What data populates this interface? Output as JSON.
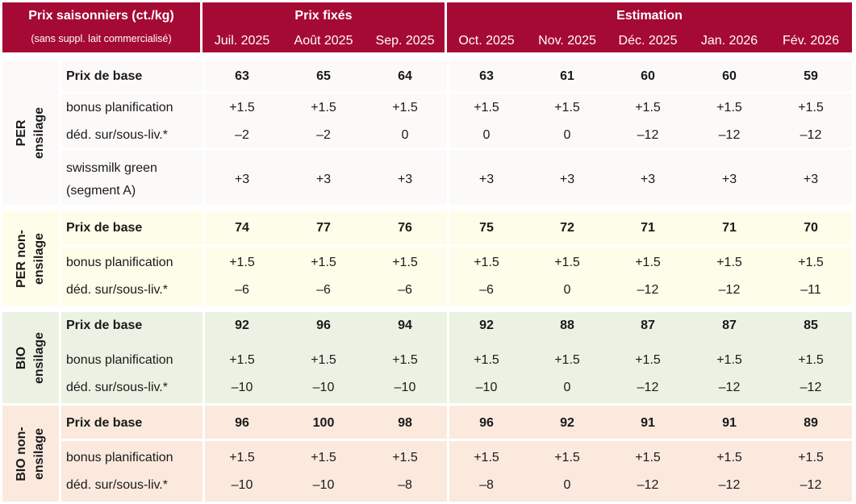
{
  "header": {
    "title": "Prix saisonniers (ct./kg)",
    "subtitle": "(sans suppl. lait commercialisé)",
    "fixed_label": "Prix fixés",
    "estimate_label": "Estimation",
    "months": [
      "Juil. 2025",
      "Août 2025",
      "Sep. 2025",
      "Oct. 2025",
      "Nov. 2025",
      "Déc. 2025",
      "Jan. 2026",
      "Fév. 2026"
    ]
  },
  "groups": [
    {
      "label_line1": "PER",
      "label_line2": "ensilage",
      "color": "#fcfaf9",
      "rows": [
        {
          "label": "Prix de base",
          "values": [
            "63",
            "65",
            "64",
            "63",
            "61",
            "60",
            "60",
            "59"
          ]
        },
        {
          "label": "bonus planification",
          "values": [
            "+1.5",
            "+1.5",
            "+1.5",
            "+1.5",
            "+1.5",
            "+1.5",
            "+1.5",
            "+1.5"
          ]
        },
        {
          "label": "déd. sur/sous-liv.*",
          "values": [
            "–2",
            "–2",
            "0",
            "0",
            "0",
            "–12",
            "–12",
            "–12"
          ]
        },
        {
          "label": "swissmilk green",
          "label2": "(segment A)",
          "values": [
            "+3",
            "+3",
            "+3",
            "+3",
            "+3",
            "+3",
            "+3",
            "+3"
          ]
        }
      ]
    },
    {
      "label_line1": "PER non-",
      "label_line2": "ensilage",
      "color": "#fefde9",
      "rows": [
        {
          "label": "Prix de base",
          "values": [
            "74",
            "77",
            "76",
            "75",
            "72",
            "71",
            "71",
            "70"
          ]
        },
        {
          "label": "bonus planification",
          "values": [
            "+1.5",
            "+1.5",
            "+1.5",
            "+1.5",
            "+1.5",
            "+1.5",
            "+1.5",
            "+1.5"
          ]
        },
        {
          "label": "déd. sur/sous-liv.*",
          "values": [
            "–6",
            "–6",
            "–6",
            "–6",
            "0",
            "–12",
            "–12",
            "–11"
          ]
        }
      ]
    },
    {
      "label_line1": "BIO",
      "label_line2": "ensilage",
      "color": "#ecf2e3",
      "rows": [
        {
          "label": "Prix de base",
          "values": [
            "92",
            "96",
            "94",
            "92",
            "88",
            "87",
            "87",
            "85"
          ]
        },
        {
          "label": "bonus planification",
          "values": [
            "+1.5",
            "+1.5",
            "+1.5",
            "+1.5",
            "+1.5",
            "+1.5",
            "+1.5",
            "+1.5"
          ]
        },
        {
          "label": "déd. sur/sous-liv.*",
          "values": [
            "–10",
            "–10",
            "–10",
            "–10",
            "0",
            "–12",
            "–12",
            "–12"
          ]
        }
      ]
    },
    {
      "label_line1": "BIO non-",
      "label_line2": "ensilage",
      "color": "#fbe9de",
      "rows": [
        {
          "label": "Prix de base",
          "values": [
            "96",
            "100",
            "98",
            "96",
            "92",
            "91",
            "91",
            "89"
          ]
        },
        {
          "label": "bonus planification",
          "values": [
            "+1.5",
            "+1.5",
            "+1.5",
            "+1.5",
            "+1.5",
            "+1.5",
            "+1.5",
            "+1.5"
          ]
        },
        {
          "label": "déd. sur/sous-liv.*",
          "values": [
            "–10",
            "–10",
            "–8",
            "–8",
            "0",
            "–12",
            "–12",
            "–12"
          ]
        }
      ]
    }
  ]
}
